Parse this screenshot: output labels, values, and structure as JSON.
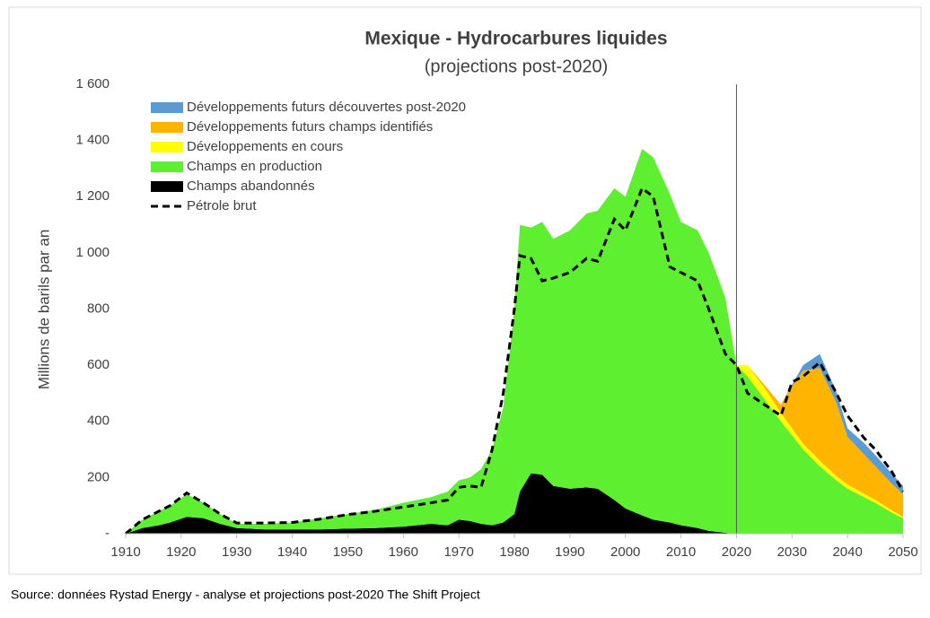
{
  "chart_data": {
    "type": "stacked_area",
    "title": "Mexique - Hydrocarbures liquides",
    "subtitle": "(projections post-2020)",
    "ylabel": "Millions de barils par an",
    "source": "Source: données Rystad Energy - analyse et projections post-2020  The Shift Project",
    "x": [
      1910,
      1913,
      1916,
      1918,
      1921,
      1924,
      1927,
      1930,
      1935,
      1940,
      1945,
      1950,
      1955,
      1960,
      1965,
      1968,
      1970,
      1972,
      1974,
      1976,
      1978,
      1980,
      1981,
      1983,
      1985,
      1987,
      1990,
      1993,
      1995,
      1998,
      2000,
      2003,
      2005,
      2008,
      2010,
      2013,
      2015,
      2018,
      2020,
      2022,
      2025,
      2028,
      2030,
      2032,
      2035,
      2038,
      2040,
      2043,
      2045,
      2048,
      2050
    ],
    "series": [
      {
        "name": "Champs abandonnés",
        "color": "#000000",
        "values": [
          0,
          20,
          30,
          40,
          60,
          55,
          35,
          20,
          15,
          15,
          15,
          18,
          20,
          25,
          35,
          30,
          50,
          45,
          35,
          30,
          40,
          70,
          150,
          215,
          210,
          170,
          160,
          165,
          160,
          120,
          90,
          65,
          50,
          40,
          30,
          20,
          10,
          3,
          0,
          0,
          0,
          0,
          0,
          0,
          0,
          0,
          0,
          0,
          0,
          0,
          0
        ]
      },
      {
        "name": "Champs en production",
        "color": "#5ef030",
        "values": [
          0,
          30,
          50,
          60,
          80,
          55,
          35,
          15,
          20,
          25,
          40,
          52,
          65,
          85,
          95,
          120,
          140,
          155,
          195,
          270,
          410,
          730,
          950,
          875,
          900,
          880,
          920,
          975,
          990,
          1110,
          1110,
          1305,
          1290,
          1170,
          1080,
          1060,
          990,
          837,
          600,
          560,
          480,
          400,
          350,
          300,
          240,
          190,
          160,
          130,
          110,
          75,
          55
        ]
      },
      {
        "name": "Développements en cours",
        "color": "#ffff00",
        "values": [
          0,
          0,
          0,
          0,
          0,
          0,
          0,
          0,
          0,
          0,
          0,
          0,
          0,
          0,
          0,
          0,
          0,
          0,
          0,
          0,
          0,
          0,
          0,
          0,
          0,
          0,
          0,
          0,
          0,
          0,
          0,
          0,
          0,
          0,
          0,
          0,
          0,
          0,
          0,
          40,
          40,
          30,
          25,
          20,
          20,
          15,
          15,
          12,
          10,
          8,
          5
        ]
      },
      {
        "name": "Développements futurs champs identifiés",
        "color": "#ffb400",
        "values": [
          0,
          0,
          0,
          0,
          0,
          0,
          0,
          0,
          0,
          0,
          0,
          0,
          0,
          0,
          0,
          0,
          0,
          0,
          0,
          0,
          0,
          0,
          0,
          0,
          0,
          0,
          0,
          0,
          0,
          0,
          0,
          0,
          0,
          0,
          0,
          0,
          0,
          0,
          0,
          0,
          10,
          30,
          150,
          260,
          330,
          260,
          170,
          140,
          120,
          95,
          80
        ]
      },
      {
        "name": "Développements futurs découvertes post-2020",
        "color": "#5b9bd5",
        "values": [
          0,
          0,
          0,
          0,
          0,
          0,
          0,
          0,
          0,
          0,
          0,
          0,
          0,
          0,
          0,
          0,
          0,
          0,
          0,
          0,
          0,
          0,
          0,
          0,
          0,
          0,
          0,
          0,
          0,
          0,
          0,
          0,
          0,
          0,
          0,
          0,
          0,
          0,
          0,
          0,
          0,
          0,
          5,
          20,
          50,
          40,
          30,
          40,
          40,
          35,
          30
        ]
      }
    ],
    "line": {
      "name": "Pétrole brut",
      "color": "#000000",
      "values": [
        0,
        50,
        80,
        100,
        145,
        110,
        70,
        38,
        38,
        40,
        52,
        68,
        80,
        95,
        110,
        120,
        165,
        170,
        165,
        300,
        500,
        800,
        990,
        980,
        900,
        910,
        930,
        980,
        970,
        1120,
        1080,
        1230,
        1200,
        950,
        930,
        900,
        800,
        640,
        600,
        500,
        460,
        420,
        540,
        560,
        610,
        500,
        420,
        340,
        300,
        220,
        150
      ]
    },
    "vline": 2020,
    "xlim": [
      1910,
      2050
    ],
    "xticks": [
      1910,
      1920,
      1930,
      1940,
      1950,
      1960,
      1970,
      1980,
      1990,
      2000,
      2010,
      2020,
      2030,
      2040,
      2050
    ],
    "ylim": [
      0,
      1600
    ],
    "yticks": [
      {
        "value": 0,
        "label": "-"
      },
      200,
      400,
      600,
      800,
      {
        "value": 1000,
        "label": "1 000"
      },
      {
        "value": 1200,
        "label": "1 200"
      },
      {
        "value": 1400,
        "label": "1 400"
      },
      {
        "value": 1600,
        "label": "1 600"
      }
    ],
    "legend": "upper left",
    "grid": false
  }
}
